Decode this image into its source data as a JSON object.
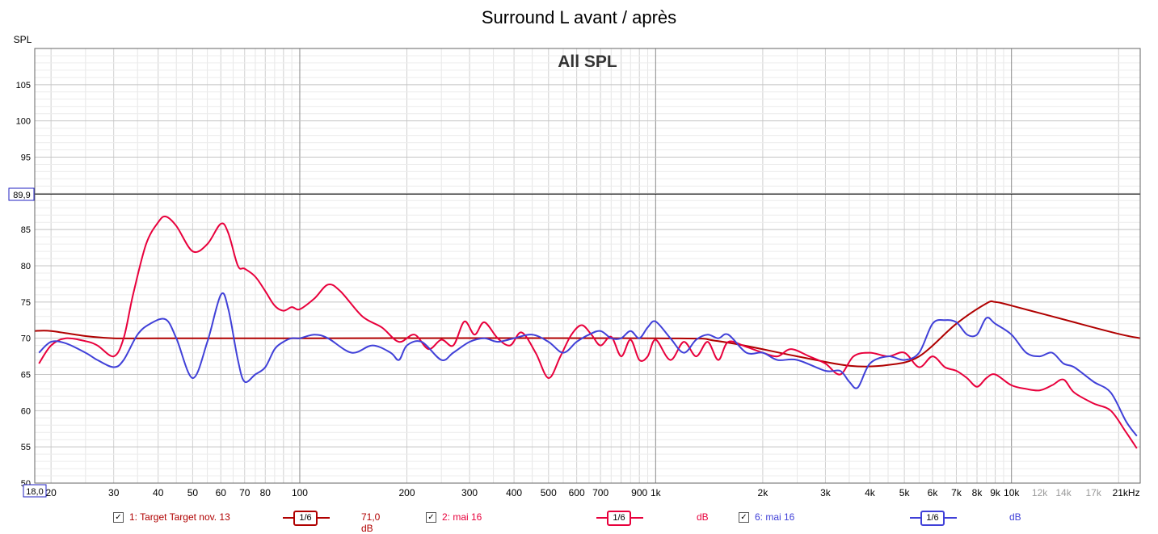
{
  "chart_data": {
    "type": "line",
    "title": "Surround L avant / après",
    "subtitle": "All SPL",
    "ylabel": "SPL",
    "xlabel": "",
    "x_scale": "log",
    "xlim": [
      18,
      23000
    ],
    "ylim": [
      50,
      110
    ],
    "grid": true,
    "y_ticks": [
      50,
      55,
      60,
      65,
      70,
      75,
      80,
      85,
      90,
      95,
      100,
      105
    ],
    "y_tick_labels": [
      "50",
      "55",
      "60",
      "65",
      "70",
      "75",
      "80",
      "85",
      "",
      "95",
      "100",
      "105"
    ],
    "cursor": {
      "y": 89.9,
      "label": "89,9"
    },
    "x_start_label": "18,0",
    "x_ticks": [
      {
        "f": 20,
        "label": "20"
      },
      {
        "f": 30,
        "label": "30"
      },
      {
        "f": 40,
        "label": "40"
      },
      {
        "f": 50,
        "label": "50"
      },
      {
        "f": 60,
        "label": "60"
      },
      {
        "f": 70,
        "label": "70"
      },
      {
        "f": 80,
        "label": "80"
      },
      {
        "f": 100,
        "label": "100"
      },
      {
        "f": 200,
        "label": "200"
      },
      {
        "f": 300,
        "label": "300"
      },
      {
        "f": 400,
        "label": "400"
      },
      {
        "f": 500,
        "label": "500"
      },
      {
        "f": 600,
        "label": "600"
      },
      {
        "f": 700,
        "label": "700"
      },
      {
        "f": 900,
        "label": "900"
      },
      {
        "f": 1000,
        "label": "1k"
      },
      {
        "f": 2000,
        "label": "2k"
      },
      {
        "f": 3000,
        "label": "3k"
      },
      {
        "f": 4000,
        "label": "4k"
      },
      {
        "f": 5000,
        "label": "5k"
      },
      {
        "f": 6000,
        "label": "6k"
      },
      {
        "f": 7000,
        "label": "7k"
      },
      {
        "f": 8000,
        "label": "8k"
      },
      {
        "f": 9000,
        "label": "9k"
      },
      {
        "f": 10000,
        "label": "10k"
      },
      {
        "f": 12000,
        "label": "12k",
        "faded": true
      },
      {
        "f": 14000,
        "label": "14k",
        "faded": true
      },
      {
        "f": 17000,
        "label": "17k",
        "faded": true
      },
      {
        "f": 21000,
        "label": "21kHz"
      }
    ],
    "series": [
      {
        "name": "1: Target Target nov. 13",
        "color": "#b00000",
        "x": [
          18,
          20,
          25,
          30,
          40,
          100,
          1000,
          1500,
          2500,
          3500,
          4500,
          5500,
          7000,
          8500,
          9000,
          10000,
          15000,
          20000,
          23000
        ],
        "y": [
          71,
          71,
          70.3,
          70,
          70,
          70,
          70,
          69.6,
          67.5,
          66.2,
          66.3,
          67.5,
          72,
          74.8,
          75,
          74.5,
          72.2,
          70.6,
          70
        ]
      },
      {
        "name": "2: mai 16",
        "color": "#e8003c",
        "x": [
          18.5,
          20,
          22,
          25,
          27,
          30,
          32,
          34,
          37,
          40,
          42,
          45,
          50,
          55,
          60,
          63,
          67,
          70,
          75,
          80,
          85,
          90,
          95,
          100,
          110,
          120,
          130,
          150,
          170,
          190,
          210,
          230,
          250,
          270,
          290,
          310,
          330,
          360,
          390,
          420,
          460,
          500,
          540,
          580,
          620,
          660,
          700,
          750,
          800,
          850,
          900,
          950,
          1000,
          1100,
          1200,
          1300,
          1400,
          1500,
          1600,
          1800,
          2000,
          2200,
          2400,
          2700,
          3000,
          3300,
          3600,
          4000,
          4500,
          5000,
          5500,
          6000,
          6500,
          7000,
          7500,
          8000,
          8500,
          9000,
          10000,
          11000,
          12000,
          13000,
          14000,
          15000,
          17000,
          19000,
          21000,
          22500
        ],
        "y": [
          66.5,
          69,
          70,
          69.6,
          69,
          67.5,
          70,
          76,
          83,
          86,
          86.8,
          85.5,
          82,
          83,
          85.8,
          84.5,
          80,
          79.6,
          78.5,
          76.5,
          74.5,
          73.8,
          74.3,
          74,
          75.5,
          77.4,
          76.5,
          73,
          71.5,
          69.5,
          70.5,
          68.5,
          69.8,
          69,
          72.3,
          70.5,
          72.2,
          70,
          69,
          70.8,
          68,
          64.5,
          67.5,
          70.5,
          71.8,
          70.5,
          69,
          70.2,
          67.5,
          69.8,
          67,
          67.5,
          69.8,
          67,
          69.5,
          67.5,
          69.5,
          67,
          69.5,
          68.8,
          68,
          67.5,
          68.5,
          67.5,
          66.5,
          65,
          67.5,
          68,
          67.5,
          68,
          66,
          67.5,
          66,
          65.5,
          64.5,
          63.3,
          64.5,
          65,
          63.5,
          63,
          62.8,
          63.5,
          64.3,
          62.5,
          61,
          60,
          57,
          54.8
        ]
      },
      {
        "name": "6: mai 16",
        "color": "#4040d8",
        "x": [
          18.5,
          20,
          22,
          25,
          27,
          30,
          32,
          35,
          38,
          42,
          45,
          50,
          55,
          60,
          63,
          67,
          70,
          75,
          80,
          85,
          90,
          95,
          100,
          110,
          120,
          140,
          160,
          180,
          190,
          200,
          220,
          250,
          270,
          300,
          330,
          360,
          400,
          450,
          500,
          550,
          600,
          650,
          700,
          750,
          800,
          850,
          900,
          950,
          1000,
          1100,
          1200,
          1300,
          1400,
          1500,
          1600,
          1800,
          2000,
          2200,
          2500,
          3000,
          3300,
          3500,
          3700,
          4000,
          4500,
          5000,
          5500,
          6000,
          6500,
          7000,
          7500,
          8000,
          8500,
          9000,
          10000,
          11000,
          12000,
          13000,
          14000,
          15000,
          17000,
          19000,
          21000,
          22500
        ],
        "y": [
          68,
          69.5,
          69.3,
          68,
          67,
          66,
          67,
          70.5,
          72,
          72.6,
          70,
          64.5,
          69.5,
          76,
          74,
          67,
          64,
          65,
          66,
          68.5,
          69.5,
          70,
          70,
          70.5,
          70,
          68,
          69,
          68,
          67,
          69,
          69.5,
          67,
          68,
          69.5,
          70,
          69.5,
          70,
          70.5,
          69.5,
          68,
          69.5,
          70.5,
          71,
          70,
          70,
          71,
          70,
          71.5,
          72.3,
          70,
          68,
          69.8,
          70.5,
          70,
          70.5,
          68,
          68,
          67,
          67,
          65.5,
          65.5,
          64,
          63.2,
          66.5,
          67.5,
          67,
          68,
          72,
          72.5,
          72.2,
          70.5,
          70.5,
          72.8,
          72,
          70.5,
          68,
          67.5,
          68,
          66.5,
          66,
          64,
          62.5,
          58.5,
          56.5
        ]
      }
    ]
  },
  "legend": {
    "items": [
      {
        "label": "1: Target Target nov. 13",
        "smoothing": "1/6",
        "value": "71,0 dB",
        "color": "#b00000"
      },
      {
        "label": "2: mai 16",
        "smoothing": "1/6",
        "value": "dB",
        "color": "#e8003c"
      },
      {
        "label": "6: mai 16",
        "smoothing": "1/6",
        "value": "dB",
        "color": "#4040d8"
      }
    ],
    "check_mark": "✓"
  }
}
